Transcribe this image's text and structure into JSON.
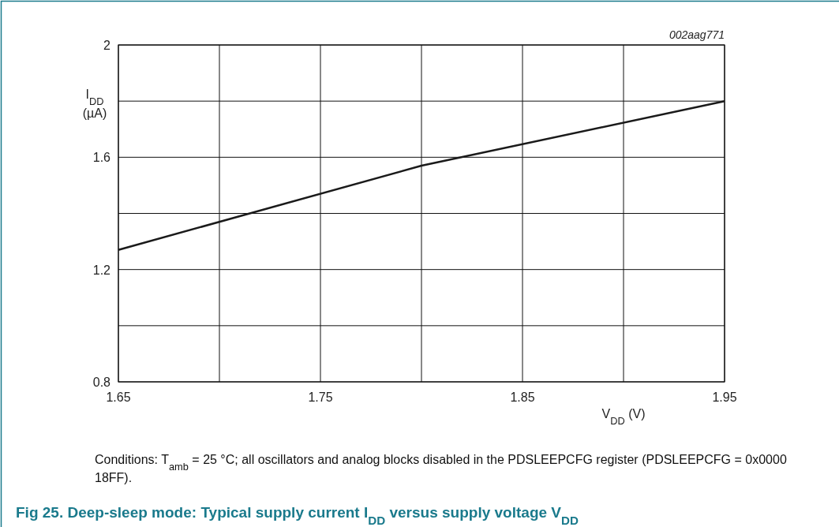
{
  "chart_data": {
    "type": "line",
    "title": "Fig 25.   Deep-sleep mode: Typical supply current I$_{DD}$ versus supply voltage V$_{DD}$",
    "xlabel": "V$_{DD}$ (V)",
    "ylabel": "I$_{DD}$ (µA)",
    "annotations": [
      "002aag771",
      "Conditions: T$_{amb}$ = 25 °C; all oscillators and analog blocks disabled in the PDSLEEPCFG register (PDSLEEPCFG = 0x0000 18FF)."
    ],
    "x": [
      1.65,
      1.8,
      1.95
    ],
    "series": [
      {
        "color": "#1a1a1a",
        "values": [
          1.27,
          1.57,
          1.8
        ]
      }
    ],
    "xlim": [
      1.65,
      1.95
    ],
    "ylim": [
      0.8,
      2
    ],
    "xticks": [
      1.65,
      {
        "value": 1.7,
        "label": null
      },
      1.75,
      {
        "value": 1.8,
        "label": null
      },
      1.85,
      {
        "value": 1.9,
        "label": null
      },
      1.95
    ],
    "yticks": [
      0.8,
      {
        "value": 1.0,
        "label": null
      },
      1.2,
      {
        "value": 1.4,
        "label": null
      },
      1.6,
      {
        "value": 1.8,
        "label": null
      },
      2
    ],
    "grid": true,
    "marker": "none",
    "line_style": "solid"
  }
}
